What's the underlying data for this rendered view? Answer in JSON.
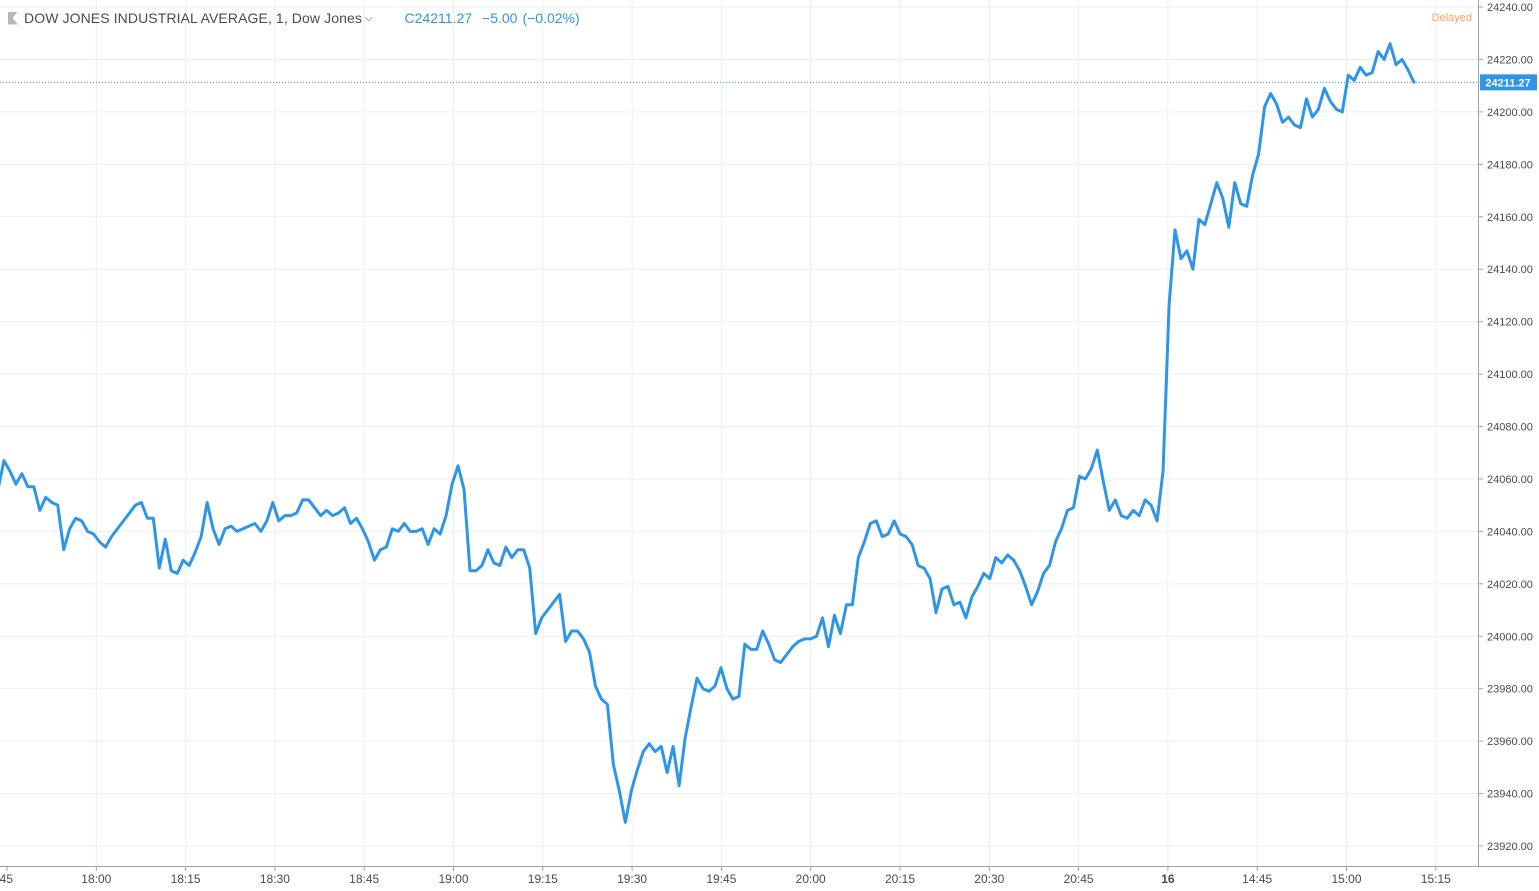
{
  "header": {
    "symbol_title": "DOW JONES INDUSTRIAL AVERAGE, 1, Dow Jones",
    "dropdown_icon": "chevron-down-icon",
    "quote_close_prefix": "C",
    "quote_close": "24211.27",
    "quote_change": "−5.00",
    "quote_change_pct": "(−0.02%)",
    "delayed_label": "Delayed"
  },
  "colors": {
    "line": "#2f95e5",
    "grid": "#e9eff4",
    "axis_text": "#4a4a4a",
    "price_tag_bg": "#2f95e5",
    "delayed": "#f5a25b"
  },
  "chart_data": {
    "type": "line",
    "title": "DOW JONES INDUSTRIAL AVERAGE, 1, Dow Jones",
    "xlabel": "",
    "ylabel": "",
    "ylim": [
      23915,
      24240
    ],
    "grid": true,
    "y_ticks": [
      "24240.00",
      "24220.00",
      "24200.00",
      "24180.00",
      "24160.00",
      "24140.00",
      "24120.00",
      "24100.00",
      "24080.00",
      "24060.00",
      "24040.00",
      "24020.00",
      "24000.00",
      "23980.00",
      "23960.00",
      "23940.00",
      "23920.00"
    ],
    "x_tick_labels": [
      "45",
      "18:00",
      "18:15",
      "18:30",
      "18:45",
      "19:00",
      "19:15",
      "19:30",
      "19:45",
      "20:00",
      "20:15",
      "20:30",
      "20:45",
      "16",
      "14:45",
      "15:00",
      "15:15"
    ],
    "last_price_label": "24211.27",
    "last_price": 24211.27,
    "series": [
      {
        "values": [
          24056,
          24067,
          24063,
          24058,
          24062,
          24057,
          24057,
          24048,
          24053,
          24051,
          24050,
          24033,
          24041,
          24045,
          24044,
          24040,
          24039,
          24036,
          24034,
          24038,
          24041,
          24044,
          24047,
          24050,
          24051,
          24045,
          24045,
          24026,
          24037,
          24025,
          24024,
          24029,
          24027,
          24032,
          24038,
          24051,
          24041,
          24035,
          24041,
          24042,
          24040,
          24041,
          24042,
          24043,
          24040,
          24044,
          24051,
          24044,
          24046,
          24046,
          24047,
          24052,
          24052,
          24049,
          24046,
          24048,
          24046,
          24047,
          24049,
          24043,
          24045,
          24041,
          24036,
          24029,
          24033,
          24034,
          24041,
          24040,
          24043,
          24040,
          24040,
          24041,
          24035,
          24041,
          24039,
          24046,
          24058,
          24065,
          24056,
          24025,
          24025,
          24027,
          24033,
          24028,
          24027,
          24034,
          24030,
          24033,
          24033,
          24026,
          24001,
          24007,
          24010,
          24013,
          24016,
          23998,
          24002,
          24002,
          23999,
          23994,
          23981,
          23976,
          23974,
          23951,
          23941,
          23929,
          23941,
          23949,
          23956,
          23959,
          23956,
          23958,
          23948,
          23958,
          23943,
          23961,
          23973,
          23984,
          23980,
          23979,
          23981,
          23988,
          23980,
          23976,
          23977,
          23997,
          23995,
          23995,
          24002,
          23997,
          23991,
          23990,
          23993,
          23996,
          23998,
          23999,
          23999,
          24000,
          24007,
          23996,
          24008,
          24001,
          24012,
          24012,
          24030,
          24036,
          24043,
          24044,
          24038,
          24039,
          24044,
          24039,
          24038,
          24035,
          24027,
          24026,
          24022,
          24009,
          24018,
          24019,
          24012,
          24013,
          24007,
          24015,
          24019,
          24024,
          24022,
          24030,
          24028,
          24031,
          24029,
          24025,
          24019,
          24012,
          24017,
          24024,
          24027,
          24036,
          24041,
          24048,
          24049,
          24061,
          24060,
          24064,
          24071,
          24059,
          24048,
          24052,
          24046,
          24045,
          24048,
          24046,
          24052,
          24050,
          24044,
          24063,
          24126,
          24155,
          24144,
          24147,
          24140,
          24159,
          24157,
          24165,
          24173,
          24167,
          24156,
          24173,
          24165,
          24164,
          24176,
          24184,
          24202,
          24207,
          24203,
          24196,
          24198,
          24195,
          24194,
          24205,
          24198,
          24201,
          24209,
          24204,
          24201,
          24200,
          24214,
          24212,
          24217,
          24214,
          24215,
          24223,
          24220,
          24226,
          24218,
          24220,
          24216,
          24211.27
        ]
      }
    ]
  }
}
